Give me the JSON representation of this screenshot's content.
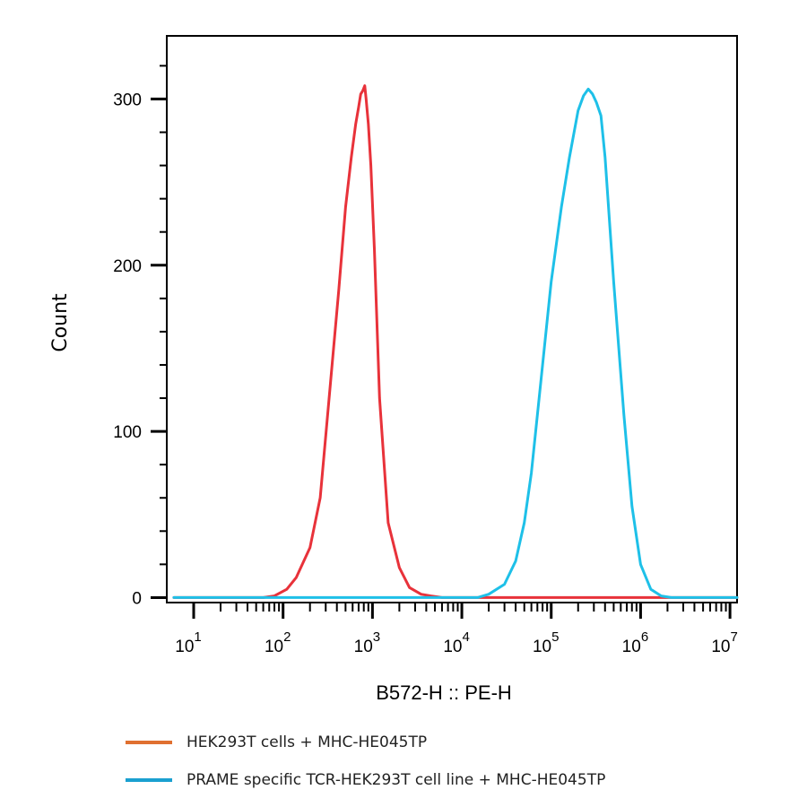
{
  "chart_data": {
    "type": "line",
    "xlabel": "B572-H :: PE-H",
    "ylabel": "Count",
    "x_scale": "log",
    "xlim": [
      5,
      12000000
    ],
    "ylim": [
      -3,
      338
    ],
    "x_ticks": [
      {
        "value": 10,
        "base": "10",
        "exp": "1"
      },
      {
        "value": 100,
        "base": "10",
        "exp": "2"
      },
      {
        "value": 1000,
        "base": "10",
        "exp": "3"
      },
      {
        "value": 10000,
        "base": "10",
        "exp": "4"
      },
      {
        "value": 100000,
        "base": "10",
        "exp": "5"
      },
      {
        "value": 1000000,
        "base": "10",
        "exp": "6"
      },
      {
        "value": 10000000,
        "base": "10",
        "exp": "7"
      }
    ],
    "y_ticks": [
      {
        "value": 0,
        "label": "0"
      },
      {
        "value": 100,
        "label": "100"
      },
      {
        "value": 200,
        "label": "200"
      },
      {
        "value": 300,
        "label": "300"
      }
    ],
    "legend_position": "bottom",
    "series": [
      {
        "name": "HEK293T cells + MHC-HE045TP",
        "color": "#e8323a",
        "legend_color": "#e07030",
        "x": [
          6,
          60,
          80,
          110,
          140,
          200,
          260,
          340,
          420,
          500,
          580,
          650,
          700,
          740,
          780,
          820,
          850,
          900,
          960,
          1050,
          1200,
          1500,
          2000,
          2600,
          3500,
          4500,
          6000,
          8000,
          12000000
        ],
        "y": [
          0,
          0,
          1,
          5,
          12,
          30,
          60,
          130,
          185,
          235,
          265,
          285,
          295,
          303,
          305,
          308,
          300,
          285,
          260,
          210,
          120,
          45,
          18,
          6,
          2,
          1,
          0,
          0,
          0
        ]
      },
      {
        "name": "PRAME specific TCR-HEK293T cell line + MHC-HE045TP",
        "color": "#1ec0e8",
        "legend_color": "#1aa0d0",
        "x": [
          6,
          15000,
          20000,
          30000,
          40000,
          50000,
          60000,
          80000,
          100000,
          130000,
          160000,
          200000,
          230000,
          260000,
          290000,
          320000,
          360000,
          400000,
          500000,
          650000,
          800000,
          1000000,
          1300000,
          1700000,
          2200000,
          12000000
        ],
        "y": [
          0,
          0,
          2,
          8,
          22,
          45,
          75,
          140,
          190,
          235,
          265,
          293,
          302,
          306,
          303,
          298,
          290,
          265,
          190,
          110,
          55,
          20,
          5,
          1,
          0,
          0
        ]
      }
    ]
  }
}
